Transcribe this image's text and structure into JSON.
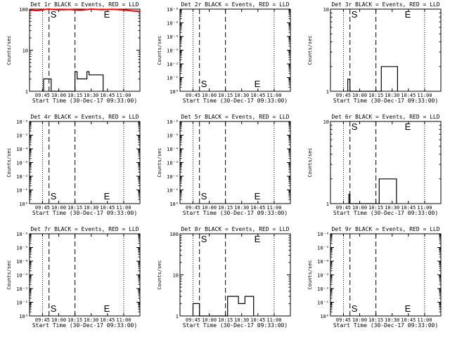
{
  "x_tick_labels": [
    "09:45",
    "10:00",
    "10:15",
    "10:30",
    "10:45",
    "11:00"
  ],
  "x_axis_title": "Start Time (30-Dec-17 09:33:00)",
  "y_axis_title": "Counts/sec",
  "marker_start": "S",
  "marker_end": "E",
  "colors": {
    "events": "#000000",
    "lld": "#ff0000",
    "axes": "#000000"
  },
  "chart_data": [
    {
      "type": "line",
      "title": "Det 1r BLACK = Events, RED = LLD",
      "yscale": "log",
      "ylim": [
        1,
        100
      ],
      "y_tick_labels": [
        "1",
        "10",
        "100"
      ],
      "y_ticks": [
        1,
        10,
        100
      ],
      "xlim": [
        "09:33",
        "11:15"
      ],
      "markers": {
        "S_x": "09:51",
        "E_x": "10:41"
      },
      "series": [
        {
          "name": "Events",
          "color": "#000000",
          "x": [
            "09:46",
            "09:46",
            "09:53",
            "09:53",
            "10:15",
            "10:15",
            "10:17",
            "10:17",
            "10:26",
            "10:26",
            "10:28",
            "10:28",
            "10:41",
            "10:41"
          ],
          "y": [
            1,
            2,
            2,
            1,
            1,
            3,
            3,
            2,
            2,
            3,
            3,
            2.5,
            2.5,
            1
          ]
        },
        {
          "name": "LLD",
          "color": "#ff0000",
          "x": [
            "09:33",
            "09:40",
            "09:50",
            "10:00",
            "10:10",
            "10:20",
            "10:30",
            "10:40",
            "10:50",
            "11:00",
            "11:10",
            "11:15"
          ],
          "y": [
            95,
            92,
            100,
            96,
            98,
            94,
            100,
            97,
            99,
            95,
            90,
            88
          ]
        }
      ]
    },
    {
      "type": "line",
      "title": "Det 2r BLACK = Events, RED = LLD",
      "yscale": "log",
      "ylim": [
        1e-06,
        1
      ],
      "y_tick_labels": [
        "10⁻⁶",
        "10⁻⁵",
        "10⁻⁴",
        "10⁻³",
        "10⁻²",
        "10⁻¹",
        "10⁰"
      ],
      "y_ticks": [
        1,
        0.1,
        0.01,
        0.001,
        0.0001,
        1e-05,
        1e-06
      ],
      "xlim": [
        "09:33",
        "11:15"
      ],
      "markers": {
        "S_x": "09:51",
        "E_x": "10:41"
      },
      "series": []
    },
    {
      "type": "line",
      "title": "Det 3r BLACK = Events, RED = LLD",
      "yscale": "log",
      "ylim": [
        1,
        10
      ],
      "y_tick_labels": [
        "1",
        "10"
      ],
      "y_ticks": [
        1,
        10
      ],
      "xlim": [
        "09:33",
        "11:15"
      ],
      "markers": {
        "S_x": "09:51",
        "E_x": "10:41"
      },
      "series": [
        {
          "name": "Events",
          "color": "#000000",
          "x": [
            "09:49",
            "09:49",
            "09:51",
            "09:51",
            "10:20",
            "10:20",
            "10:35",
            "10:35"
          ],
          "y": [
            1,
            1.4,
            1.4,
            1,
            1,
            2,
            2,
            1
          ]
        }
      ]
    },
    {
      "type": "line",
      "title": "Det 4r BLACK = Events, RED = LLD",
      "yscale": "log",
      "ylim": [
        1e-06,
        1
      ],
      "y_tick_labels": [
        "10⁻⁶",
        "10⁻⁵",
        "10⁻⁴",
        "10⁻³",
        "10⁻²",
        "10⁻¹",
        "10⁰"
      ],
      "y_ticks": [
        1,
        0.1,
        0.01,
        0.001,
        0.0001,
        1e-05,
        1e-06
      ],
      "xlim": [
        "09:33",
        "11:15"
      ],
      "markers": {
        "S_x": "09:51",
        "E_x": "10:41"
      },
      "series": []
    },
    {
      "type": "line",
      "title": "Det 5r BLACK = Events, RED = LLD",
      "yscale": "log",
      "ylim": [
        1e-06,
        1
      ],
      "y_tick_labels": [
        "10⁻⁶",
        "10⁻⁵",
        "10⁻⁴",
        "10⁻³",
        "10⁻²",
        "10⁻¹",
        "10⁰"
      ],
      "y_ticks": [
        1,
        0.1,
        0.01,
        0.001,
        0.0001,
        1e-05,
        1e-06
      ],
      "xlim": [
        "09:33",
        "11:15"
      ],
      "markers": {
        "S_x": "09:51",
        "E_x": "10:41"
      },
      "series": []
    },
    {
      "type": "line",
      "title": "Det 6r BLACK = Events, RED = LLD",
      "yscale": "log",
      "ylim": [
        1,
        10
      ],
      "y_tick_labels": [
        "1",
        "10"
      ],
      "y_ticks": [
        1,
        10
      ],
      "xlim": [
        "09:33",
        "11:15"
      ],
      "markers": {
        "S_x": "09:51",
        "E_x": "10:41"
      },
      "series": [
        {
          "name": "Events",
          "color": "#000000",
          "x": [
            "09:50",
            "09:50",
            "09:51",
            "09:51",
            "10:18",
            "10:18",
            "10:34",
            "10:34"
          ],
          "y": [
            1,
            1.3,
            1.3,
            1,
            1,
            2,
            2,
            1
          ]
        }
      ]
    },
    {
      "type": "line",
      "title": "Det 7r BLACK = Events, RED = LLD",
      "yscale": "log",
      "ylim": [
        1e-06,
        1
      ],
      "y_tick_labels": [
        "10⁻⁶",
        "10⁻⁵",
        "10⁻⁴",
        "10⁻³",
        "10⁻²",
        "10⁻¹",
        "10⁰"
      ],
      "y_ticks": [
        1,
        0.1,
        0.01,
        0.001,
        0.0001,
        1e-05,
        1e-06
      ],
      "xlim": [
        "09:33",
        "11:15"
      ],
      "markers": {
        "S_x": "09:51",
        "E_x": "10:41"
      },
      "series": []
    },
    {
      "type": "line",
      "title": "Det 8r BLACK = Events, RED = LLD",
      "yscale": "log",
      "ylim": [
        1,
        100
      ],
      "y_tick_labels": [
        "1",
        "10",
        "100"
      ],
      "y_ticks": [
        1,
        10,
        100
      ],
      "xlim": [
        "09:33",
        "11:15"
      ],
      "markers": {
        "S_x": "09:51",
        "E_x": "10:41"
      },
      "series": [
        {
          "name": "Events",
          "color": "#000000",
          "x": [
            "09:45",
            "09:45",
            "09:51",
            "09:51",
            "10:17",
            "10:17",
            "10:27",
            "10:27",
            "10:33",
            "10:33",
            "10:41",
            "10:41"
          ],
          "y": [
            1,
            2,
            2,
            1,
            1,
            3,
            3,
            2,
            2,
            3,
            3,
            1
          ]
        }
      ]
    },
    {
      "type": "line",
      "title": "Det 9r BLACK = Events, RED = LLD",
      "yscale": "log",
      "ylim": [
        1e-06,
        1
      ],
      "y_tick_labels": [
        "10⁻⁶",
        "10⁻⁵",
        "10⁻⁴",
        "10⁻³",
        "10⁻²",
        "10⁻¹",
        "10⁰"
      ],
      "y_ticks": [
        1,
        0.1,
        0.01,
        0.001,
        0.0001,
        1e-05,
        1e-06
      ],
      "xlim": [
        "09:33",
        "11:15"
      ],
      "markers": {
        "S_x": "09:51",
        "E_x": "10:41"
      },
      "series": []
    }
  ]
}
